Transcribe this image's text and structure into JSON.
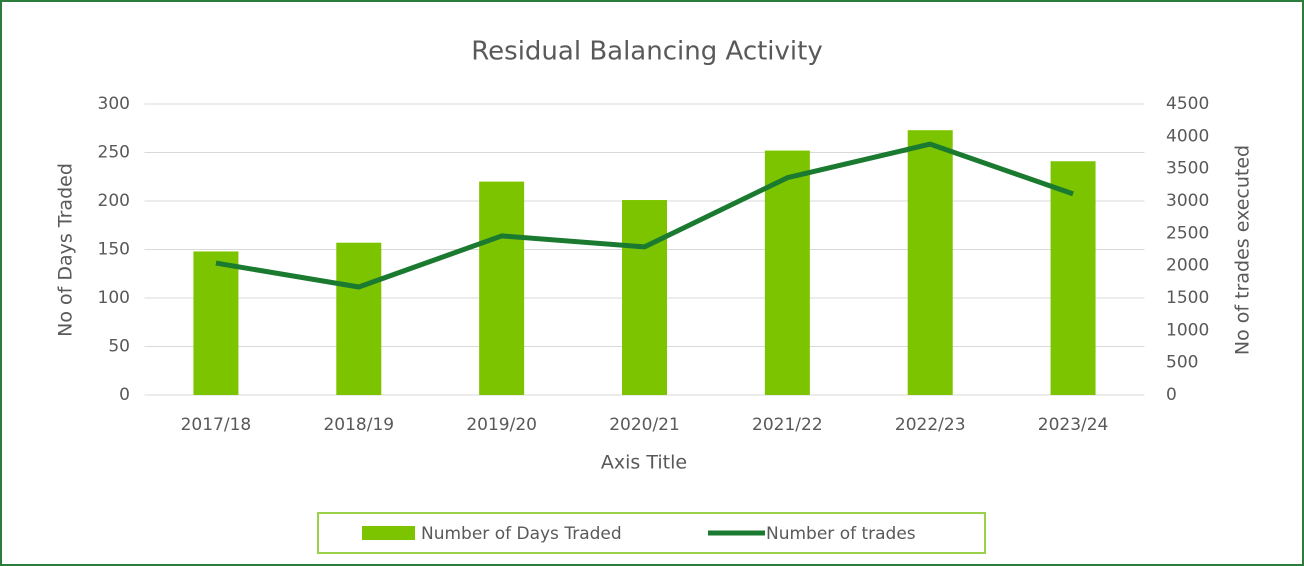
{
  "chart_data": {
    "type": "bar-line",
    "title": "Residual Balancing Activity",
    "x_label": "Axis Title",
    "y_label": "No of Days Traded",
    "y2_label": "No of trades executed",
    "categories": [
      "2017/18",
      "2018/19",
      "2019/20",
      "2020/21",
      "2021/22",
      "2022/23",
      "2023/24"
    ],
    "series": [
      {
        "name": "Number of Days Traded",
        "type": "bar",
        "color": "#7dc400",
        "values": [
          148,
          157,
          220,
          201,
          252,
          273,
          241
        ]
      },
      {
        "name": "Number of trades",
        "type": "line",
        "axis": "y2",
        "color": "#1a7a30",
        "values": [
          2040,
          1670,
          2460,
          2290,
          3360,
          3880,
          3110
        ]
      }
    ],
    "ylim": [
      0,
      300
    ],
    "yticks": [
      0,
      50,
      100,
      150,
      200,
      250,
      300
    ],
    "y2lim": [
      0,
      4500
    ],
    "y2ticks": [
      0,
      500,
      1000,
      1500,
      2000,
      2500,
      3000,
      3500,
      4000,
      4500
    ],
    "grid": true,
    "legend": "bottom"
  }
}
